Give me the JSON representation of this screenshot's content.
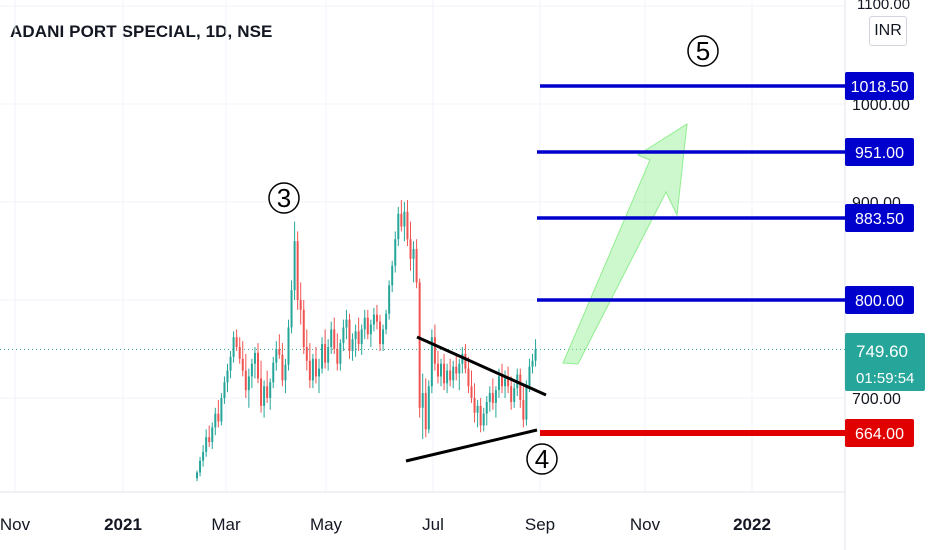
{
  "chart_data": {
    "type": "candlestick",
    "title": "ADANI PORT SPECIAL, 1D, NSE",
    "currency": "INR",
    "x_ticks": [
      "Nov",
      "2021",
      "Mar",
      "May",
      "Jul",
      "Sep",
      "Nov",
      "2022"
    ],
    "y_ticks": [
      "1100.00",
      "1000.00",
      "900.00",
      "800.00",
      "700.00"
    ],
    "y_range": [
      615,
      1115
    ],
    "last_price": "749.60",
    "countdown": "01:59:54",
    "last_price_color": "#26a69a",
    "levels": [
      {
        "label": "1018.50",
        "value": 1018.5,
        "color": "#0000cc"
      },
      {
        "label": "951.00",
        "value": 951.0,
        "color": "#0000cc"
      },
      {
        "label": "883.50",
        "value": 883.5,
        "color": "#0000cc"
      },
      {
        "label": "800.00",
        "value": 800.0,
        "color": "#0000cc"
      },
      {
        "label": "664.00",
        "value": 664.0,
        "color": "#e00000"
      }
    ],
    "wave_labels": [
      "3",
      "4",
      "5"
    ],
    "up_color": "#26a69a",
    "down_color": "#ef5350",
    "arrow_color": "#90ee90",
    "candles": [
      {
        "o": 618,
        "h": 626,
        "l": 615,
        "c": 624
      },
      {
        "o": 624,
        "h": 640,
        "l": 620,
        "c": 636
      },
      {
        "o": 636,
        "h": 652,
        "l": 630,
        "c": 645
      },
      {
        "o": 645,
        "h": 668,
        "l": 640,
        "c": 660
      },
      {
        "o": 660,
        "h": 672,
        "l": 650,
        "c": 655
      },
      {
        "o": 655,
        "h": 675,
        "l": 648,
        "c": 670
      },
      {
        "o": 670,
        "h": 690,
        "l": 662,
        "c": 684
      },
      {
        "o": 684,
        "h": 698,
        "l": 670,
        "c": 676
      },
      {
        "o": 676,
        "h": 705,
        "l": 672,
        "c": 700
      },
      {
        "o": 700,
        "h": 722,
        "l": 694,
        "c": 716
      },
      {
        "o": 716,
        "h": 735,
        "l": 706,
        "c": 728
      },
      {
        "o": 728,
        "h": 748,
        "l": 720,
        "c": 742
      },
      {
        "o": 742,
        "h": 768,
        "l": 736,
        "c": 762
      },
      {
        "o": 762,
        "h": 770,
        "l": 748,
        "c": 752
      },
      {
        "o": 752,
        "h": 762,
        "l": 735,
        "c": 740
      },
      {
        "o": 740,
        "h": 758,
        "l": 722,
        "c": 728
      },
      {
        "o": 728,
        "h": 745,
        "l": 700,
        "c": 708
      },
      {
        "o": 708,
        "h": 730,
        "l": 690,
        "c": 722
      },
      {
        "o": 722,
        "h": 740,
        "l": 710,
        "c": 735
      },
      {
        "o": 735,
        "h": 752,
        "l": 720,
        "c": 746
      },
      {
        "o": 746,
        "h": 756,
        "l": 715,
        "c": 720
      },
      {
        "o": 720,
        "h": 738,
        "l": 685,
        "c": 692
      },
      {
        "o": 692,
        "h": 718,
        "l": 680,
        "c": 712
      },
      {
        "o": 712,
        "h": 728,
        "l": 695,
        "c": 700
      },
      {
        "o": 700,
        "h": 720,
        "l": 688,
        "c": 716
      },
      {
        "o": 716,
        "h": 742,
        "l": 710,
        "c": 736
      },
      {
        "o": 736,
        "h": 758,
        "l": 728,
        "c": 750
      },
      {
        "o": 750,
        "h": 765,
        "l": 740,
        "c": 744
      },
      {
        "o": 744,
        "h": 756,
        "l": 712,
        "c": 718
      },
      {
        "o": 718,
        "h": 740,
        "l": 705,
        "c": 734
      },
      {
        "o": 734,
        "h": 780,
        "l": 728,
        "c": 772
      },
      {
        "o": 772,
        "h": 820,
        "l": 766,
        "c": 810
      },
      {
        "o": 810,
        "h": 880,
        "l": 800,
        "c": 860
      },
      {
        "o": 860,
        "h": 870,
        "l": 790,
        "c": 800
      },
      {
        "o": 800,
        "h": 818,
        "l": 775,
        "c": 790
      },
      {
        "o": 790,
        "h": 800,
        "l": 745,
        "c": 752
      },
      {
        "o": 752,
        "h": 770,
        "l": 728,
        "c": 738
      },
      {
        "o": 738,
        "h": 756,
        "l": 710,
        "c": 718
      },
      {
        "o": 718,
        "h": 745,
        "l": 710,
        "c": 740
      },
      {
        "o": 740,
        "h": 752,
        "l": 715,
        "c": 722
      },
      {
        "o": 722,
        "h": 740,
        "l": 705,
        "c": 730
      },
      {
        "o": 730,
        "h": 762,
        "l": 725,
        "c": 755
      },
      {
        "o": 755,
        "h": 770,
        "l": 730,
        "c": 736
      },
      {
        "o": 736,
        "h": 760,
        "l": 728,
        "c": 752
      },
      {
        "o": 752,
        "h": 778,
        "l": 745,
        "c": 770
      },
      {
        "o": 770,
        "h": 782,
        "l": 745,
        "c": 750
      },
      {
        "o": 750,
        "h": 766,
        "l": 728,
        "c": 735
      },
      {
        "o": 735,
        "h": 760,
        "l": 728,
        "c": 756
      },
      {
        "o": 756,
        "h": 780,
        "l": 748,
        "c": 772
      },
      {
        "o": 772,
        "h": 790,
        "l": 760,
        "c": 780
      },
      {
        "o": 780,
        "h": 786,
        "l": 740,
        "c": 748
      },
      {
        "o": 748,
        "h": 766,
        "l": 738,
        "c": 760
      },
      {
        "o": 760,
        "h": 775,
        "l": 742,
        "c": 768
      },
      {
        "o": 768,
        "h": 782,
        "l": 748,
        "c": 755
      },
      {
        "o": 755,
        "h": 775,
        "l": 744,
        "c": 770
      },
      {
        "o": 770,
        "h": 790,
        "l": 760,
        "c": 782
      },
      {
        "o": 782,
        "h": 790,
        "l": 760,
        "c": 765
      },
      {
        "o": 765,
        "h": 780,
        "l": 752,
        "c": 775
      },
      {
        "o": 775,
        "h": 792,
        "l": 768,
        "c": 785
      },
      {
        "o": 785,
        "h": 795,
        "l": 770,
        "c": 778
      },
      {
        "o": 778,
        "h": 785,
        "l": 748,
        "c": 755
      },
      {
        "o": 755,
        "h": 775,
        "l": 748,
        "c": 770
      },
      {
        "o": 770,
        "h": 790,
        "l": 765,
        "c": 786
      },
      {
        "o": 786,
        "h": 820,
        "l": 780,
        "c": 815
      },
      {
        "o": 815,
        "h": 840,
        "l": 808,
        "c": 835
      },
      {
        "o": 835,
        "h": 870,
        "l": 828,
        "c": 862
      },
      {
        "o": 862,
        "h": 895,
        "l": 855,
        "c": 888
      },
      {
        "o": 888,
        "h": 902,
        "l": 870,
        "c": 875
      },
      {
        "o": 875,
        "h": 900,
        "l": 860,
        "c": 890
      },
      {
        "o": 890,
        "h": 902,
        "l": 855,
        "c": 862
      },
      {
        "o": 862,
        "h": 880,
        "l": 830,
        "c": 842
      },
      {
        "o": 842,
        "h": 860,
        "l": 818,
        "c": 852
      },
      {
        "o": 852,
        "h": 862,
        "l": 812,
        "c": 818
      },
      {
        "o": 818,
        "h": 822,
        "l": 680,
        "c": 690
      },
      {
        "o": 690,
        "h": 725,
        "l": 658,
        "c": 705
      },
      {
        "o": 705,
        "h": 720,
        "l": 660,
        "c": 668
      },
      {
        "o": 668,
        "h": 718,
        "l": 664,
        "c": 712
      },
      {
        "o": 712,
        "h": 770,
        "l": 705,
        "c": 762
      },
      {
        "o": 762,
        "h": 775,
        "l": 728,
        "c": 735
      },
      {
        "o": 735,
        "h": 748,
        "l": 715,
        "c": 722
      },
      {
        "o": 722,
        "h": 740,
        "l": 712,
        "c": 735
      },
      {
        "o": 735,
        "h": 745,
        "l": 708,
        "c": 715
      },
      {
        "o": 715,
        "h": 735,
        "l": 705,
        "c": 728
      },
      {
        "o": 728,
        "h": 740,
        "l": 712,
        "c": 718
      },
      {
        "o": 718,
        "h": 738,
        "l": 710,
        "c": 732
      },
      {
        "o": 732,
        "h": 745,
        "l": 718,
        "c": 725
      },
      {
        "o": 725,
        "h": 740,
        "l": 708,
        "c": 735
      },
      {
        "o": 735,
        "h": 752,
        "l": 725,
        "c": 745
      },
      {
        "o": 745,
        "h": 755,
        "l": 725,
        "c": 730
      },
      {
        "o": 730,
        "h": 742,
        "l": 705,
        "c": 712
      },
      {
        "o": 712,
        "h": 728,
        "l": 695,
        "c": 700
      },
      {
        "o": 700,
        "h": 715,
        "l": 675,
        "c": 685
      },
      {
        "o": 685,
        "h": 698,
        "l": 670,
        "c": 692
      },
      {
        "o": 692,
        "h": 700,
        "l": 665,
        "c": 672
      },
      {
        "o": 672,
        "h": 690,
        "l": 666,
        "c": 684
      },
      {
        "o": 684,
        "h": 702,
        "l": 672,
        "c": 696
      },
      {
        "o": 696,
        "h": 712,
        "l": 686,
        "c": 705
      },
      {
        "o": 705,
        "h": 720,
        "l": 688,
        "c": 695
      },
      {
        "o": 695,
        "h": 712,
        "l": 680,
        "c": 708
      },
      {
        "o": 708,
        "h": 730,
        "l": 700,
        "c": 722
      },
      {
        "o": 722,
        "h": 735,
        "l": 705,
        "c": 712
      },
      {
        "o": 712,
        "h": 728,
        "l": 700,
        "c": 720
      },
      {
        "o": 720,
        "h": 732,
        "l": 705,
        "c": 712
      },
      {
        "o": 712,
        "h": 722,
        "l": 688,
        "c": 696
      },
      {
        "o": 696,
        "h": 715,
        "l": 690,
        "c": 710
      },
      {
        "o": 710,
        "h": 730,
        "l": 702,
        "c": 724
      },
      {
        "o": 724,
        "h": 730,
        "l": 690,
        "c": 698
      },
      {
        "o": 698,
        "h": 712,
        "l": 670,
        "c": 678
      },
      {
        "o": 678,
        "h": 718,
        "l": 672,
        "c": 712
      },
      {
        "o": 712,
        "h": 740,
        "l": 706,
        "c": 732
      },
      {
        "o": 732,
        "h": 745,
        "l": 725,
        "c": 738
      },
      {
        "o": 738,
        "h": 760,
        "l": 732,
        "c": 749.6
      }
    ]
  }
}
